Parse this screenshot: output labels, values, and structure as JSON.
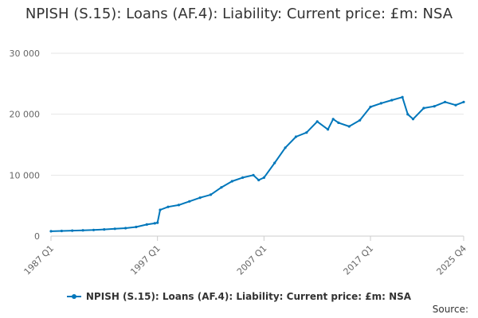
{
  "chart_data": {
    "type": "line",
    "title": "NPISH (S.15): Loans (AF.4): Liability: Current price: £m: NSA",
    "xlabel": "",
    "ylabel": "",
    "ylim": [
      0,
      30000
    ],
    "yticks": [
      0,
      10000,
      20000,
      30000
    ],
    "ytick_labels": [
      "0",
      "10 000",
      "20 000",
      "30 000"
    ],
    "xrange": [
      "1987 Q1",
      "2025 Q4"
    ],
    "xtick_labels": [
      "1987 Q1",
      "1997 Q1",
      "2007 Q1",
      "2017 Q1",
      "2025 Q4"
    ],
    "grid": "horizontal",
    "legend": "bottom",
    "source_label": "Source:",
    "colors": {
      "series": "#0077bb",
      "grid": "#e6e6e6",
      "axis": "#cccccc"
    },
    "series": [
      {
        "name": "NPISH (S.15): Loans (AF.4): Liability: Current price: £m: NSA",
        "x": [
          "1987 Q1",
          "1988 Q1",
          "1989 Q1",
          "1990 Q1",
          "1991 Q1",
          "1992 Q1",
          "1993 Q1",
          "1994 Q1",
          "1995 Q1",
          "1996 Q1",
          "1996 Q4",
          "1997 Q1",
          "1997 Q2",
          "1998 Q1",
          "1999 Q1",
          "2000 Q1",
          "2001 Q1",
          "2002 Q1",
          "2003 Q1",
          "2004 Q1",
          "2005 Q1",
          "2006 Q1",
          "2006 Q3",
          "2007 Q1",
          "2008 Q1",
          "2009 Q1",
          "2010 Q1",
          "2011 Q1",
          "2012 Q1",
          "2013 Q1",
          "2013 Q3",
          "2014 Q1",
          "2015 Q1",
          "2016 Q1",
          "2017 Q1",
          "2018 Q1",
          "2019 Q1",
          "2020 Q1",
          "2020 Q3",
          "2021 Q1",
          "2022 Q1",
          "2023 Q1",
          "2024 Q1",
          "2025 Q1",
          "2025 Q4"
        ],
        "values": [
          800,
          850,
          900,
          950,
          1000,
          1100,
          1200,
          1300,
          1500,
          1900,
          2100,
          2200,
          4300,
          4800,
          5100,
          5700,
          6300,
          6800,
          8000,
          9000,
          9600,
          10000,
          9200,
          9600,
          12000,
          14500,
          16300,
          17000,
          18800,
          17500,
          19200,
          18600,
          18000,
          19000,
          21200,
          21800,
          22300,
          22800,
          20000,
          19200,
          21000,
          21300,
          22000,
          21500,
          22000
        ]
      }
    ]
  }
}
